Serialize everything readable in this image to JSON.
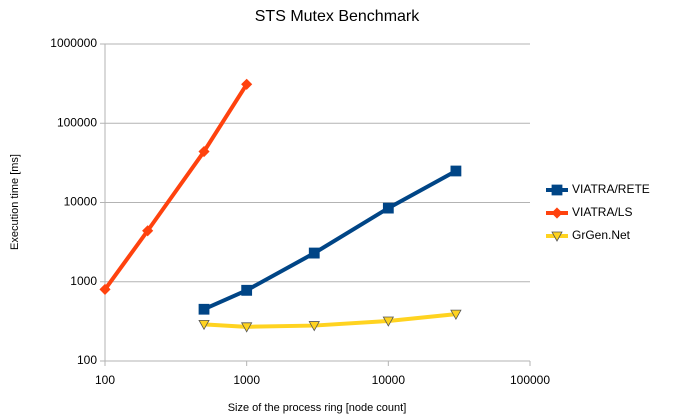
{
  "chart_data": {
    "type": "line",
    "title": "STS Mutex Benchmark",
    "x_label": "Size of the process ring [node count]",
    "y_label": "Execution time [ms]",
    "log_x": true,
    "log_y": true,
    "grid": true,
    "legend": "right",
    "xlim": [
      100,
      100000
    ],
    "xticks": [
      100,
      1000,
      10000,
      100000
    ],
    "ylim": [
      100,
      1000000
    ],
    "yticks": [
      100,
      1000,
      10000,
      100000,
      1000000
    ],
    "series": [
      {
        "name": "VIATRA/RETE",
        "color": "#004586",
        "marker": "square",
        "x": [
          500,
          1000,
          3000,
          10000,
          30000
        ],
        "values": [
          450,
          780,
          2300,
          8500,
          25000
        ]
      },
      {
        "name": "VIATRA/LS",
        "color": "#ff420e",
        "marker": "diamond",
        "x": [
          100,
          200,
          500,
          1000
        ],
        "values": [
          800,
          4400,
          44000,
          310000
        ]
      },
      {
        "name": "GrGen.Net",
        "color": "#ffd320",
        "marker": "triangle-down",
        "x": [
          500,
          1000,
          3000,
          10000,
          30000
        ],
        "values": [
          290,
          270,
          280,
          320,
          390
        ]
      }
    ]
  }
}
